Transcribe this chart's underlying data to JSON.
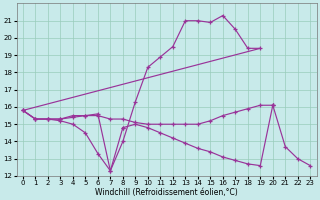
{
  "xlabel": "Windchill (Refroidissement éolien,°C)",
  "xlim": [
    -0.5,
    23.5
  ],
  "ylim": [
    12,
    22
  ],
  "yticks": [
    12,
    13,
    14,
    15,
    16,
    17,
    18,
    19,
    20,
    21
  ],
  "xticks": [
    0,
    1,
    2,
    3,
    4,
    5,
    6,
    7,
    8,
    9,
    10,
    11,
    12,
    13,
    14,
    15,
    16,
    17,
    18,
    19,
    20,
    21,
    22,
    23
  ],
  "bg_color": "#c8eaea",
  "line_color": "#993399",
  "grid_color": "#99ccbb",
  "line1_x": [
    0,
    1,
    2,
    3,
    4,
    5,
    6,
    7,
    8,
    9,
    10,
    11,
    12,
    13,
    14,
    15,
    16,
    17,
    18,
    19
  ],
  "line1_y": [
    15.8,
    15.3,
    15.3,
    15.3,
    15.4,
    15.5,
    15.6,
    12.3,
    14.0,
    16.3,
    18.3,
    18.9,
    19.5,
    21.0,
    21.0,
    20.9,
    21.3,
    20.5,
    19.4,
    19.4
  ],
  "line2_x": [
    0,
    19
  ],
  "line2_y": [
    15.8,
    19.4
  ],
  "line3_x": [
    0,
    1,
    2,
    3,
    4,
    5,
    6,
    7,
    8,
    9,
    10,
    11,
    12,
    13,
    14,
    15,
    16,
    17,
    18,
    19,
    20
  ],
  "line3_y": [
    15.8,
    15.3,
    15.3,
    15.3,
    15.5,
    15.5,
    15.5,
    15.3,
    15.3,
    15.1,
    15.0,
    15.0,
    15.0,
    15.0,
    15.0,
    15.2,
    15.5,
    15.7,
    15.9,
    16.1,
    16.1
  ],
  "line4_x": [
    0,
    1,
    2,
    3,
    4,
    5,
    6,
    7,
    8,
    9,
    10,
    11,
    12,
    13,
    14,
    15,
    16,
    17,
    18,
    19,
    20,
    21,
    22,
    23
  ],
  "line4_y": [
    15.8,
    15.3,
    15.3,
    15.2,
    15.0,
    14.5,
    13.3,
    12.3,
    14.8,
    15.0,
    14.8,
    14.5,
    14.2,
    13.9,
    13.6,
    13.4,
    13.1,
    12.9,
    12.7,
    12.6,
    16.1,
    13.7,
    13.0,
    12.6
  ]
}
